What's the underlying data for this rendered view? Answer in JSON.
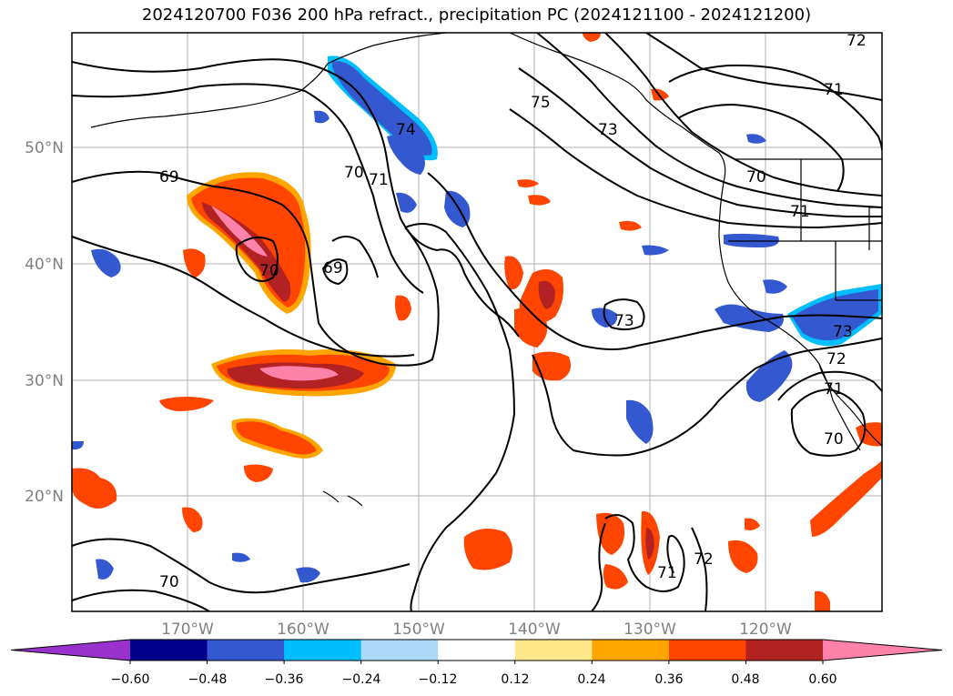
{
  "title": "2024120700 F036 200 hPa refract., precipitation PC (2024121100 - 2024121200)",
  "map": {
    "lat_labels": [
      "50°N",
      "40°N",
      "30°N",
      "20°N"
    ],
    "lon_labels": [
      "170°W",
      "160°W",
      "150°W",
      "140°W",
      "130°W",
      "120°W"
    ],
    "contour_labels": [
      "69",
      "70",
      "71",
      "74",
      "75",
      "73",
      "70",
      "71",
      "72",
      "71",
      "70",
      "69",
      "73",
      "73",
      "72",
      "71",
      "70",
      "70",
      "71",
      "72"
    ]
  },
  "colorbar": {
    "tick_labels": [
      "−0.60",
      "−0.48",
      "−0.36",
      "−0.24",
      "−0.12",
      "0.12",
      "0.24",
      "0.36",
      "0.48",
      "0.60"
    ],
    "colors": [
      "#9932cc",
      "#00008b",
      "#3358cf",
      "#00bfff",
      "#add8f7",
      "#ffffff",
      "#ffe88c",
      "#ffa500",
      "#ff4500",
      "#b22222",
      "#ff82aa"
    ]
  }
}
